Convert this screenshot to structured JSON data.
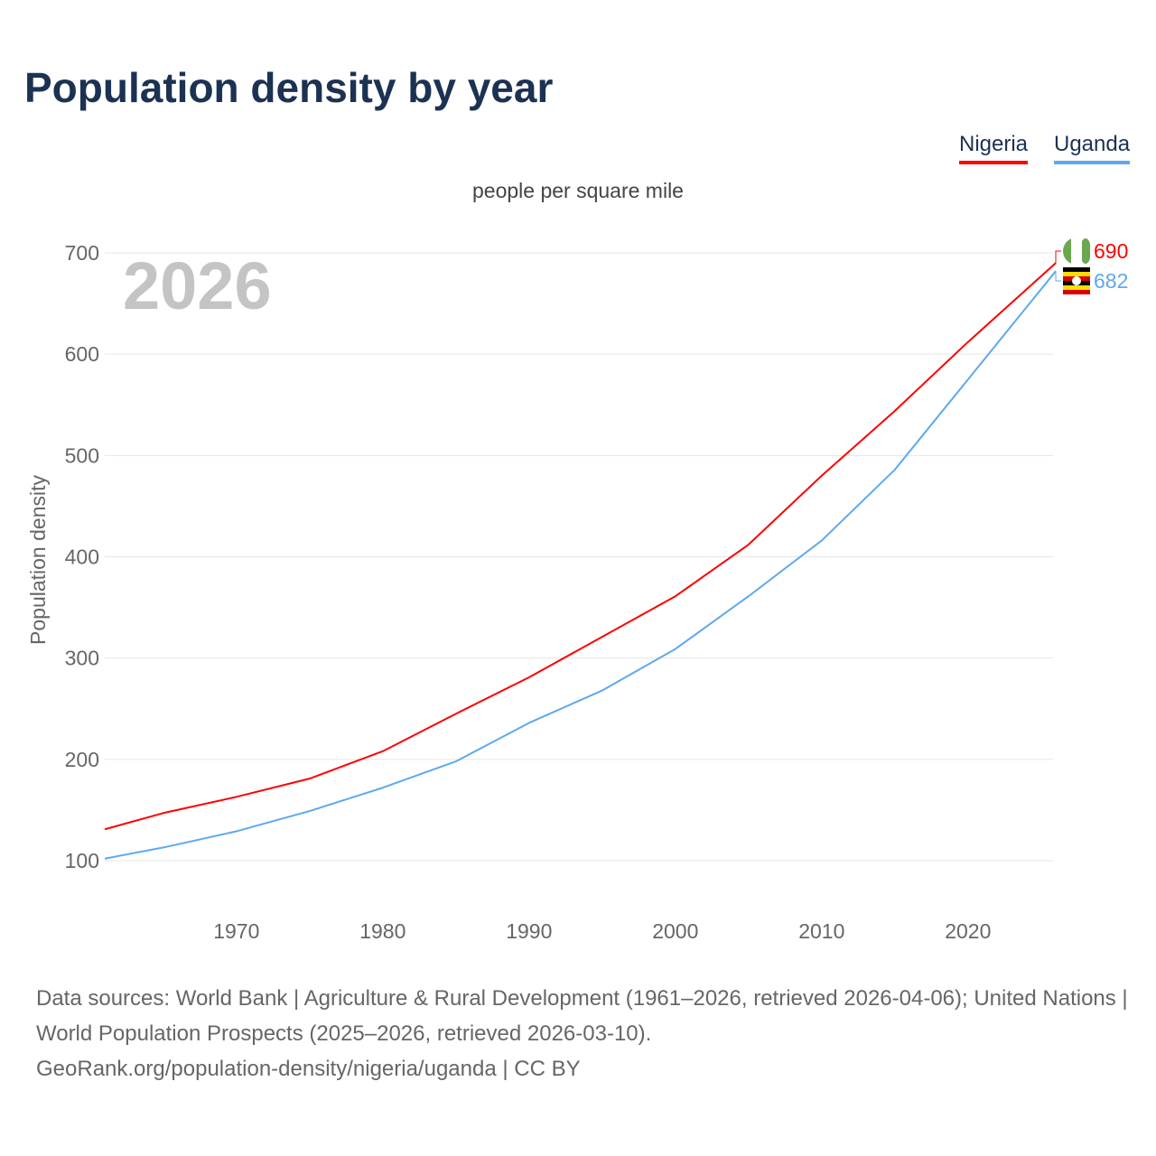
{
  "title": "Population density by year",
  "subtitle": "people per square mile",
  "year_watermark": "2026",
  "legend": [
    {
      "label": "Nigeria",
      "color": "#ff0000"
    },
    {
      "label": "Uganda",
      "color": "#5ea8ee"
    }
  ],
  "footer": {
    "line1": "Data sources: World Bank | Agriculture & Rural Development (1961–2026, retrieved 2026-04-06); United Nations | World Population Prospects (2025–2026, retrieved 2026-03-10).",
    "line2": "GeoRank.org/population-density/nigeria/uganda | CC BY"
  },
  "chart_data": {
    "type": "line",
    "title": "Population density by year",
    "xlabel": "",
    "ylabel": "Population density",
    "xlim": [
      1961,
      2026
    ],
    "ylim": [
      100,
      700
    ],
    "xticks": [
      1970,
      1980,
      1990,
      2000,
      2010,
      2020
    ],
    "yticks": [
      100,
      200,
      300,
      400,
      500,
      600,
      700
    ],
    "grid": true,
    "legend_position": "top-right",
    "x": [
      1961,
      1965,
      1970,
      1975,
      1980,
      1985,
      1990,
      1995,
      2000,
      2005,
      2010,
      2015,
      2020,
      2026
    ],
    "series": [
      {
        "name": "Nigeria",
        "color": "#ff0000",
        "end_label": "690",
        "values": [
          131,
          147,
          163,
          181,
          208,
          245,
          281,
          321,
          361,
          412,
          480,
          544,
          612,
          690
        ]
      },
      {
        "name": "Uganda",
        "color": "#5ea8ee",
        "end_label": "682",
        "values": [
          102,
          113,
          129,
          149,
          172,
          198,
          236,
          268,
          309,
          361,
          416,
          486,
          575,
          682
        ]
      }
    ]
  }
}
